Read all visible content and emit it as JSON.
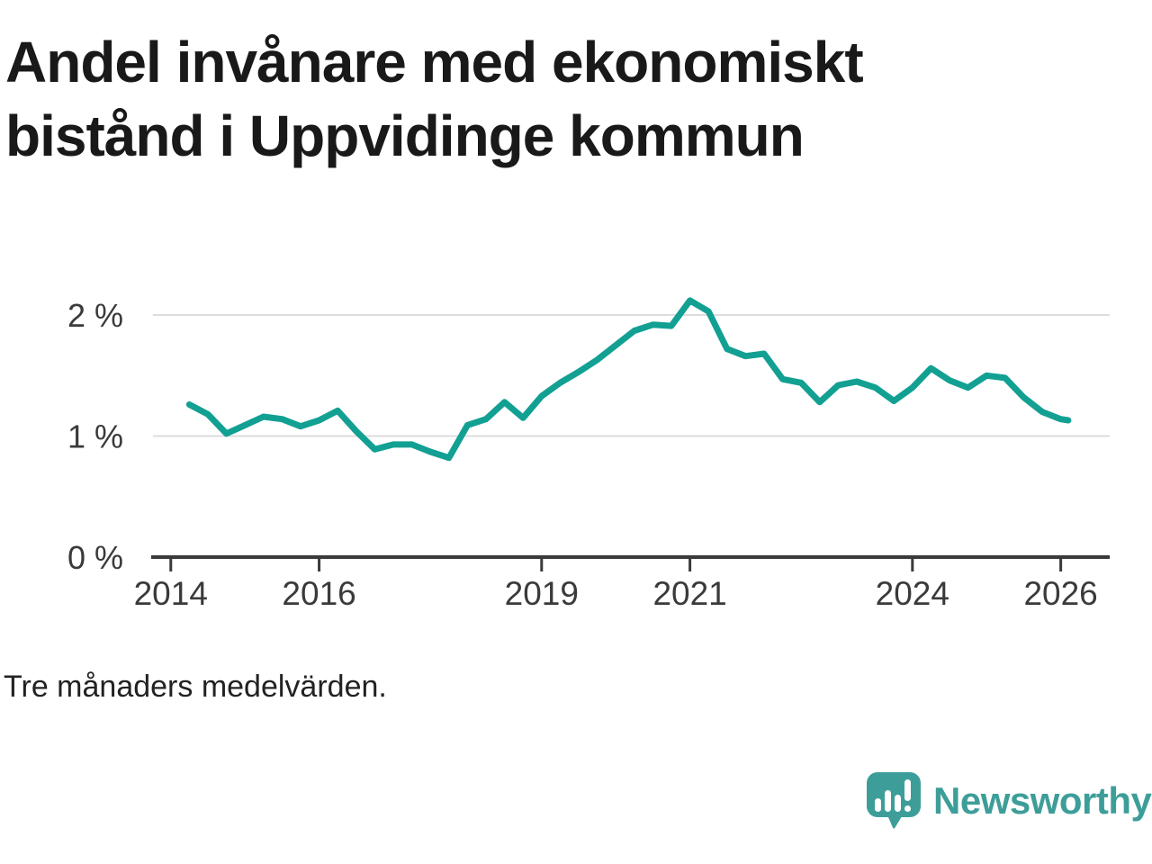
{
  "title": "Andel invånare med ekonomiskt\nbistånd i Uppvidinge kommun",
  "footnote": "Tre månaders medelvärden.",
  "branding": {
    "name": "Newsworthy",
    "logo_icon": "newsworthy-speech-bubble-bar-chart-icon",
    "color": "#3d9e99"
  },
  "colors": {
    "line": "#12a093",
    "grid": "#dddddd",
    "axis": "#3a3a3a",
    "title_text": "#191919",
    "background": "#ffffff"
  },
  "chart_data": {
    "type": "line",
    "title": "Andel invånare med ekonomiskt bistånd i Uppvidinge kommun",
    "subtitle": "",
    "xlabel": "",
    "ylabel": "",
    "legend": "none",
    "grid": "horizontal-only",
    "x_domain": [
      2013.76,
      2026.66
    ],
    "ylim": [
      0,
      2.3
    ],
    "xticks": [
      {
        "v": 2014,
        "label": "2014"
      },
      {
        "v": 2016,
        "label": "2016"
      },
      {
        "v": 2019,
        "label": "2019"
      },
      {
        "v": 2021,
        "label": "2021"
      },
      {
        "v": 2024,
        "label": "2024"
      },
      {
        "v": 2026,
        "label": "2026"
      }
    ],
    "yticks": [
      {
        "v": 0,
        "label": "0 %"
      },
      {
        "v": 1,
        "label": "1 %"
      },
      {
        "v": 2,
        "label": "2 %"
      }
    ],
    "series": [
      {
        "name": "Andel invånare med ekonomiskt bistånd (tre månaders medelvärden)",
        "unit": "%",
        "x": [
          2014.25,
          2014.5,
          2014.75,
          2015.0,
          2015.25,
          2015.5,
          2015.75,
          2016.0,
          2016.25,
          2016.5,
          2016.75,
          2017.0,
          2017.25,
          2017.5,
          2017.75,
          2018.0,
          2018.25,
          2018.5,
          2018.75,
          2019.0,
          2019.25,
          2019.5,
          2019.75,
          2020.0,
          2020.25,
          2020.5,
          2020.75,
          2021.0,
          2021.25,
          2021.5,
          2021.75,
          2022.0,
          2022.25,
          2022.5,
          2022.75,
          2023.0,
          2023.25,
          2023.5,
          2023.75,
          2024.0,
          2024.25,
          2024.5,
          2024.75,
          2025.0,
          2025.25,
          2025.5,
          2025.75,
          2026.0,
          2026.1
        ],
        "y": [
          1.26,
          1.18,
          1.02,
          1.09,
          1.16,
          1.14,
          1.08,
          1.13,
          1.21,
          1.04,
          0.89,
          0.93,
          0.93,
          0.87,
          0.82,
          1.09,
          1.14,
          1.28,
          1.15,
          1.33,
          1.44,
          1.53,
          1.63,
          1.75,
          1.87,
          1.92,
          1.91,
          2.12,
          2.03,
          1.72,
          1.66,
          1.68,
          1.47,
          1.44,
          1.28,
          1.42,
          1.45,
          1.4,
          1.29,
          1.4,
          1.56,
          1.46,
          1.4,
          1.5,
          1.48,
          1.32,
          1.2,
          1.14,
          1.13
        ]
      }
    ]
  }
}
